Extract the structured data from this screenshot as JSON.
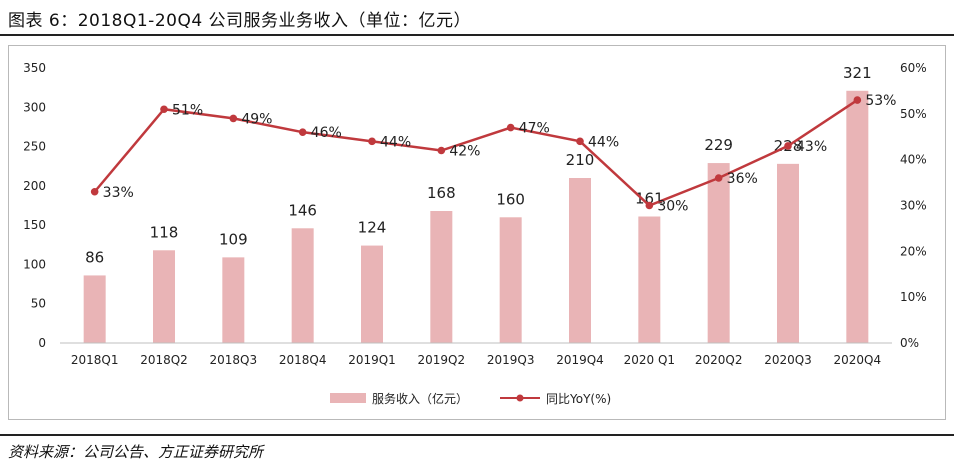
{
  "title": "图表 6：2018Q1-20Q4 公司服务业务收入（单位：亿元）",
  "source": "资料来源：公司公告、方正证券研究所",
  "colors": {
    "bar": "#e9b4b6",
    "line": "#c0393d",
    "text": "#222222"
  },
  "chart_data": {
    "type": "bar+line",
    "categories": [
      "2018Q1",
      "2018Q2",
      "2018Q3",
      "2018Q4",
      "2019Q1",
      "2019Q2",
      "2019Q3",
      "2019Q4",
      "2020 Q1",
      "2020Q2",
      "2020Q3",
      "2020Q4"
    ],
    "series": [
      {
        "name": "服务收入（亿元）",
        "type": "bar",
        "axis": "left",
        "values": [
          86,
          118,
          109,
          146,
          124,
          168,
          160,
          210,
          161,
          229,
          228,
          321
        ],
        "labels": [
          "86",
          "118",
          "109",
          "146",
          "124",
          "168",
          "160",
          "210",
          "161",
          "229",
          "228",
          "321"
        ]
      },
      {
        "name": "同比YoY(%)",
        "type": "line",
        "axis": "right",
        "values": [
          33,
          51,
          49,
          46,
          44,
          42,
          47,
          44,
          30,
          36,
          43,
          53
        ],
        "labels": [
          "33%",
          "51%",
          "49%",
          "46%",
          "44%",
          "42%",
          "47%",
          "44%",
          "30%",
          "36%",
          "43%",
          "53%"
        ]
      }
    ],
    "y_left": {
      "min": 0,
      "max": 350,
      "ticks": [
        0,
        50,
        100,
        150,
        200,
        250,
        300,
        350
      ],
      "tick_labels": [
        "0",
        "50",
        "100",
        "150",
        "200",
        "250",
        "300",
        "350"
      ]
    },
    "y_right": {
      "min": 0,
      "max": 60,
      "ticks": [
        0,
        10,
        20,
        30,
        40,
        50,
        60
      ],
      "tick_labels": [
        "0%",
        "10%",
        "20%",
        "30%",
        "40%",
        "50%",
        "60%"
      ]
    },
    "grid": false,
    "legend": "bottom"
  }
}
